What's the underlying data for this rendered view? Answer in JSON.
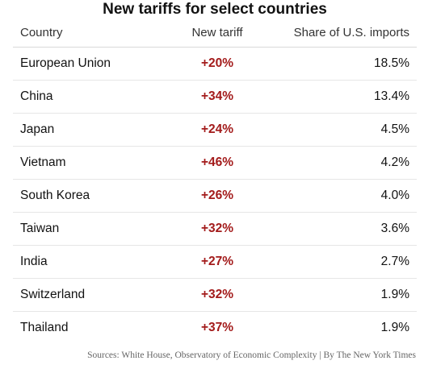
{
  "title": "New tariffs for select countries",
  "source": "Sources: White House, Observatory of Economic Complexity | By The New York Times",
  "colors": {
    "tariff_text": "#a31b1b",
    "divider": "#e6e6e6"
  },
  "chart_data": {
    "type": "table",
    "title": "New tariffs for select countries",
    "columns": [
      "Country",
      "New tariff",
      "Share of U.S. imports"
    ],
    "rows": [
      {
        "country": "European Union",
        "tariff": "+20%",
        "share": "18.5%"
      },
      {
        "country": "China",
        "tariff": "+34%",
        "share": "13.4%"
      },
      {
        "country": "Japan",
        "tariff": "+24%",
        "share": "4.5%"
      },
      {
        "country": "Vietnam",
        "tariff": "+46%",
        "share": "4.2%"
      },
      {
        "country": "South Korea",
        "tariff": "+26%",
        "share": "4.0%"
      },
      {
        "country": "Taiwan",
        "tariff": "+32%",
        "share": "3.6%"
      },
      {
        "country": "India",
        "tariff": "+27%",
        "share": "2.7%"
      },
      {
        "country": "Switzerland",
        "tariff": "+32%",
        "share": "1.9%"
      },
      {
        "country": "Thailand",
        "tariff": "+37%",
        "share": "1.9%"
      }
    ]
  }
}
